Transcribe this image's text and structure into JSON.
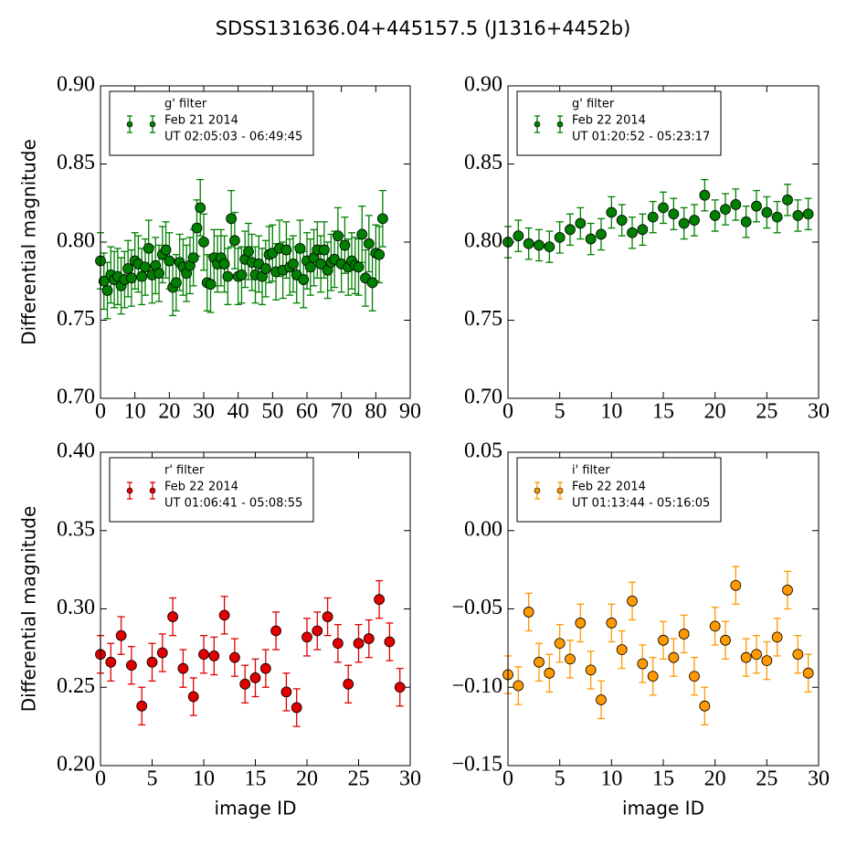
{
  "title": "SDSS131636.04+445157.5 (J1316+4452b)",
  "chart_data": [
    {
      "type": "errorbar",
      "ylabel": "Differential magnitude",
      "legend": "upper left",
      "xlim": [
        0,
        90
      ],
      "xticks": [
        0,
        10,
        20,
        30,
        40,
        50,
        60,
        70,
        80,
        90
      ],
      "ylim": [
        0.7,
        0.9
      ],
      "yticks": [
        {
          "value": 0.7,
          "label": "0.70"
        },
        0.75,
        {
          "value": 0.8,
          "label": "0.80"
        },
        0.85,
        {
          "value": 0.9,
          "label": "0.90"
        }
      ],
      "series": [
        {
          "name": [
            "g' filter",
            "Feb 21 2014",
            "UT 02:05:03 - 06:49:45"
          ],
          "color": "#008000",
          "x": [
            0,
            1,
            2,
            3,
            4,
            5,
            6,
            7,
            8,
            9,
            10,
            11,
            12,
            13,
            14,
            15,
            16,
            17,
            18,
            19,
            20,
            21,
            22,
            23,
            24,
            25,
            26,
            27,
            28,
            29,
            30,
            31,
            32,
            33,
            34,
            35,
            36,
            37,
            38,
            39,
            40,
            41,
            42,
            43,
            44,
            45,
            46,
            47,
            48,
            49,
            50,
            51,
            52,
            53,
            54,
            55,
            56,
            57,
            58,
            59,
            60,
            61,
            62,
            63,
            64,
            65,
            66,
            67,
            68,
            69,
            70,
            71,
            72,
            73,
            74,
            75,
            76,
            77,
            78,
            79,
            80,
            81,
            82
          ],
          "values": [
            0.788,
            0.775,
            0.769,
            0.779,
            0.776,
            0.778,
            0.772,
            0.776,
            0.783,
            0.777,
            0.788,
            0.786,
            0.778,
            0.784,
            0.796,
            0.779,
            0.785,
            0.78,
            0.792,
            0.795,
            0.788,
            0.771,
            0.774,
            0.787,
            0.784,
            0.78,
            0.785,
            0.79,
            0.809,
            0.822,
            0.8,
            0.774,
            0.773,
            0.79,
            0.786,
            0.79,
            0.786,
            0.778,
            0.815,
            0.801,
            0.778,
            0.779,
            0.789,
            0.794,
            0.787,
            0.779,
            0.786,
            0.778,
            0.783,
            0.792,
            0.793,
            0.781,
            0.796,
            0.782,
            0.795,
            0.784,
            0.786,
            0.779,
            0.796,
            0.776,
            0.788,
            0.784,
            0.79,
            0.795,
            0.786,
            0.795,
            0.782,
            0.787,
            0.789,
            0.804,
            0.786,
            0.798,
            0.784,
            0.788,
            0.785,
            0.784,
            0.805,
            0.777,
            0.799,
            0.774,
            0.793,
            0.792,
            0.815
          ],
          "errors": [
            0.018,
            0.018,
            0.018,
            0.018,
            0.018,
            0.018,
            0.018,
            0.018,
            0.018,
            0.018,
            0.018,
            0.018,
            0.018,
            0.018,
            0.018,
            0.018,
            0.018,
            0.018,
            0.018,
            0.018,
            0.018,
            0.018,
            0.018,
            0.018,
            0.018,
            0.018,
            0.018,
            0.018,
            0.018,
            0.018,
            0.018,
            0.018,
            0.018,
            0.018,
            0.018,
            0.018,
            0.018,
            0.018,
            0.018,
            0.018,
            0.018,
            0.018,
            0.018,
            0.018,
            0.018,
            0.018,
            0.018,
            0.018,
            0.018,
            0.018,
            0.018,
            0.018,
            0.018,
            0.018,
            0.018,
            0.018,
            0.018,
            0.018,
            0.018,
            0.018,
            0.018,
            0.018,
            0.018,
            0.018,
            0.018,
            0.018,
            0.018,
            0.018,
            0.018,
            0.018,
            0.018,
            0.018,
            0.018,
            0.018,
            0.018,
            0.018,
            0.018,
            0.018,
            0.018,
            0.018,
            0.018,
            0.018,
            0.018
          ]
        }
      ]
    },
    {
      "type": "errorbar",
      "legend": "upper left",
      "xlim": [
        0,
        30
      ],
      "xticks": [
        0,
        5,
        10,
        15,
        20,
        25,
        30
      ],
      "ylim": [
        0.7,
        0.9
      ],
      "yticks": [
        {
          "value": 0.7,
          "label": "0.70"
        },
        0.75,
        {
          "value": 0.8,
          "label": "0.80"
        },
        0.85,
        {
          "value": 0.9,
          "label": "0.90"
        }
      ],
      "series": [
        {
          "name": [
            "g' filter",
            "Feb 22 2014",
            "UT 01:20:52 - 05:23:17"
          ],
          "color": "#008000",
          "x": [
            0,
            1,
            2,
            3,
            4,
            5,
            6,
            7,
            8,
            9,
            10,
            11,
            12,
            13,
            14,
            15,
            16,
            17,
            18,
            19,
            20,
            21,
            22,
            23,
            24,
            25,
            26,
            27,
            28,
            29
          ],
          "values": [
            0.8,
            0.804,
            0.799,
            0.798,
            0.797,
            0.803,
            0.808,
            0.812,
            0.802,
            0.805,
            0.819,
            0.814,
            0.806,
            0.808,
            0.816,
            0.822,
            0.818,
            0.812,
            0.814,
            0.83,
            0.817,
            0.821,
            0.824,
            0.813,
            0.823,
            0.819,
            0.816,
            0.827,
            0.817,
            0.818
          ],
          "errors": [
            0.01,
            0.01,
            0.01,
            0.01,
            0.01,
            0.01,
            0.01,
            0.01,
            0.01,
            0.01,
            0.01,
            0.01,
            0.01,
            0.01,
            0.01,
            0.01,
            0.01,
            0.01,
            0.01,
            0.01,
            0.01,
            0.01,
            0.01,
            0.01,
            0.01,
            0.01,
            0.01,
            0.01,
            0.01,
            0.01
          ]
        }
      ]
    },
    {
      "type": "errorbar",
      "ylabel": "Differential magnitude",
      "xlabel": "image ID",
      "legend": "upper left",
      "xlim": [
        0,
        30
      ],
      "xticks": [
        0,
        5,
        10,
        15,
        20,
        25,
        30
      ],
      "ylim": [
        0.2,
        0.4
      ],
      "yticks": [
        {
          "value": 0.2,
          "label": "0.20"
        },
        0.25,
        {
          "value": 0.3,
          "label": "0.30"
        },
        0.35,
        {
          "value": 0.4,
          "label": "0.40"
        }
      ],
      "series": [
        {
          "name": [
            "r' filter",
            "Feb 22 2014",
            "UT 01:06:41 - 05:08:55"
          ],
          "color": "#e00000",
          "x": [
            0,
            1,
            2,
            3,
            4,
            5,
            6,
            7,
            8,
            9,
            10,
            11,
            12,
            13,
            14,
            15,
            16,
            17,
            18,
            19,
            20,
            21,
            22,
            23,
            24,
            25,
            26,
            27,
            28,
            29
          ],
          "values": [
            0.271,
            0.266,
            0.283,
            0.264,
            0.238,
            0.266,
            0.272,
            0.295,
            0.262,
            0.244,
            0.271,
            0.27,
            0.296,
            0.269,
            0.252,
            0.256,
            0.262,
            0.286,
            0.247,
            0.237,
            0.282,
            0.286,
            0.295,
            0.278,
            0.252,
            0.278,
            0.281,
            0.306,
            0.279,
            0.25
          ],
          "errors": [
            0.012,
            0.012,
            0.012,
            0.012,
            0.012,
            0.012,
            0.012,
            0.012,
            0.012,
            0.012,
            0.012,
            0.012,
            0.012,
            0.012,
            0.012,
            0.012,
            0.012,
            0.012,
            0.012,
            0.012,
            0.012,
            0.012,
            0.012,
            0.012,
            0.012,
            0.012,
            0.012,
            0.012,
            0.012,
            0.012
          ]
        }
      ]
    },
    {
      "type": "errorbar",
      "xlabel": "image ID",
      "legend": "upper left",
      "xlim": [
        0,
        30
      ],
      "xticks": [
        0,
        5,
        10,
        15,
        20,
        25,
        30
      ],
      "ylim": [
        -0.15,
        0.05
      ],
      "yticks": [
        {
          "value": -0.15,
          "label": "−0.15"
        },
        {
          "value": -0.1,
          "label": "−0.10"
        },
        {
          "value": -0.05,
          "label": "−0.05"
        },
        {
          "value": 0,
          "label": "0.00"
        },
        0.05
      ],
      "series": [
        {
          "name": [
            "i' filter",
            "Feb 22 2014",
            "UT 01:13:44 - 05:16:05"
          ],
          "color": "#ff9900",
          "x": [
            0,
            1,
            2,
            3,
            4,
            5,
            6,
            7,
            8,
            9,
            10,
            11,
            12,
            13,
            14,
            15,
            16,
            17,
            18,
            19,
            20,
            21,
            22,
            23,
            24,
            25,
            26,
            27,
            28,
            29
          ],
          "values": [
            -0.092,
            -0.099,
            -0.052,
            -0.084,
            -0.091,
            -0.072,
            -0.082,
            -0.059,
            -0.089,
            -0.108,
            -0.059,
            -0.076,
            -0.045,
            -0.085,
            -0.093,
            -0.07,
            -0.081,
            -0.066,
            -0.093,
            -0.112,
            -0.061,
            -0.07,
            -0.035,
            -0.081,
            -0.079,
            -0.083,
            -0.068,
            -0.038,
            -0.079,
            -0.091
          ],
          "errors": [
            0.012,
            0.012,
            0.012,
            0.012,
            0.012,
            0.012,
            0.012,
            0.012,
            0.012,
            0.012,
            0.012,
            0.012,
            0.012,
            0.012,
            0.012,
            0.012,
            0.012,
            0.012,
            0.012,
            0.012,
            0.012,
            0.012,
            0.012,
            0.012,
            0.012,
            0.012,
            0.012,
            0.012,
            0.012,
            0.012
          ]
        }
      ]
    }
  ]
}
